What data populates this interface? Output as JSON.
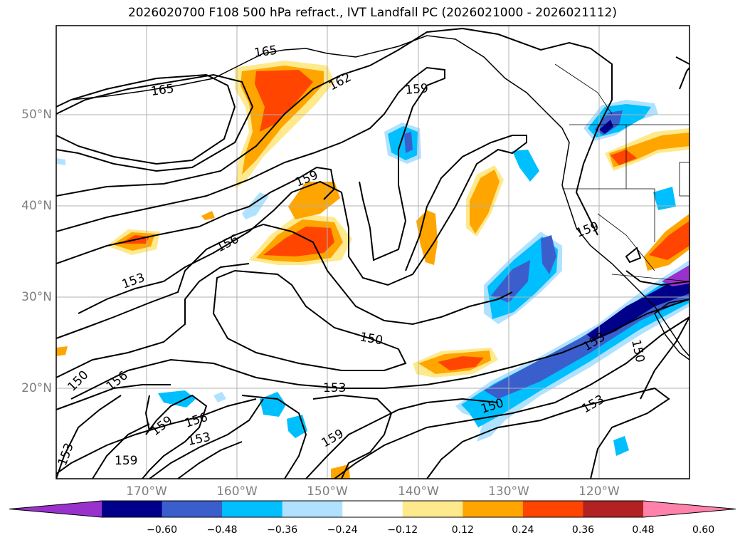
{
  "title": "2026020700 F108 500 hPa refract., IVT Landfall PC (2026021000 - 2026021112)",
  "map": {
    "lat_labels": [
      "50°N",
      "40°N",
      "30°N",
      "20°N"
    ],
    "lon_labels": [
      "170°W",
      "160°W",
      "150°W",
      "140°W",
      "130°W",
      "120°W"
    ],
    "contour_labels": [
      "165",
      "165",
      "162",
      "159",
      "159",
      "159",
      "156",
      "153",
      "150",
      "156",
      "153",
      "150",
      "150",
      "156",
      "159",
      "153",
      "159",
      "153",
      "150",
      "153",
      "159",
      "153",
      "150"
    ]
  },
  "colorbar": {
    "ticks": [
      "−0.60",
      "−0.48",
      "−0.36",
      "−0.24",
      "−0.12",
      "0.12",
      "0.24",
      "0.36",
      "0.48",
      "0.60"
    ],
    "colors": [
      "#9932cc",
      "#00008b",
      "#3a5fcd",
      "#00bfff",
      "#b0e2ff",
      "#ffffff",
      "#fee98c",
      "#ffa500",
      "#ff4500",
      "#b22222",
      "#ff82ab"
    ]
  }
}
